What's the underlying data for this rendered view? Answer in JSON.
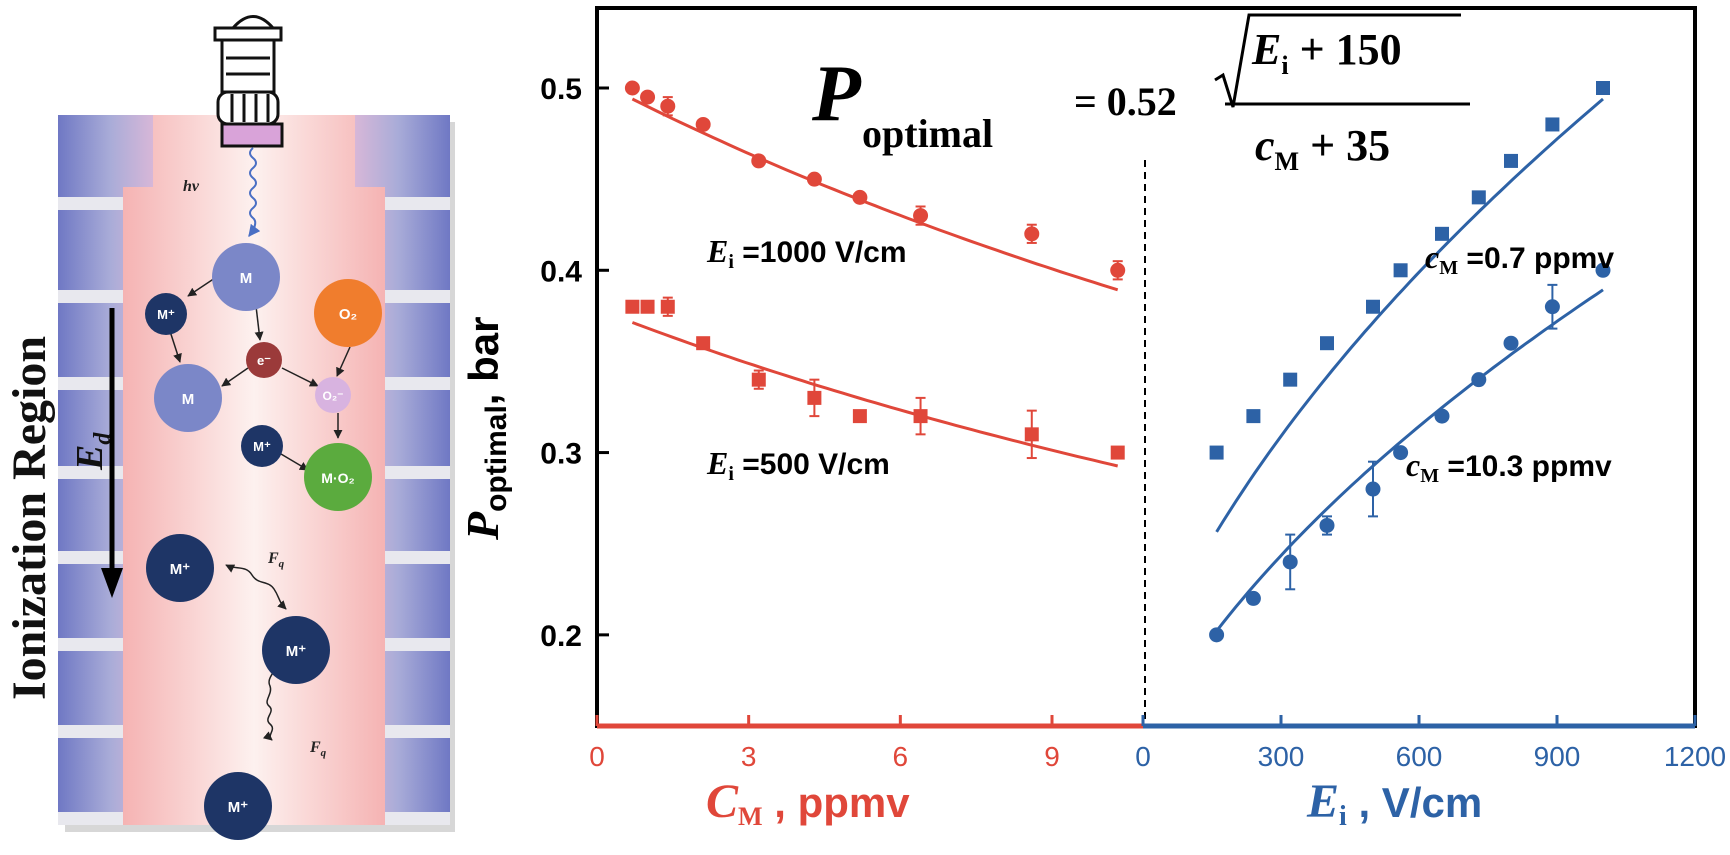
{
  "diagram": {
    "region_label": "Ionization Region",
    "field_label_main": "E",
    "field_label_sub": "d",
    "hv_label": "hv",
    "force_label_main": "F",
    "force_label_sub": "q",
    "species": {
      "m": "M",
      "m_plus": "M⁺",
      "e_minus": "e⁻",
      "o2": "O₂",
      "o2_minus": "O₂⁻",
      "mo2": "M·O₂"
    },
    "colors": {
      "wall": "#8d93d0",
      "channel": "#f7c6c6",
      "m": "#7b87c8",
      "m_plus": "#1e3566",
      "e_minus": "#9b3a3a",
      "o2": "#f07d2d",
      "o2_minus": "#d8b3e0",
      "mo2": "#5bab3e",
      "lamp_window": "#d9a3d9"
    }
  },
  "chart": {
    "y_label_main": "P",
    "y_label_sub": "optimal",
    "y_label_unit": ", bar",
    "left_x_label_main": "C",
    "left_x_label_sub": "M",
    "left_x_label_unit": " , ppmv",
    "right_x_label_main": "E",
    "right_x_label_sub": "i",
    "right_x_label_unit": " , V/cm",
    "formula": {
      "lhs_main": "P",
      "lhs_sub": "optimal",
      "equals": "= 0.52",
      "num_a": "E",
      "num_sub": "i",
      "num_b": " + 150",
      "den_a": "c",
      "den_sub": "M",
      "den_b": " + 35"
    },
    "annotations": {
      "ei1000": {
        "main": "E",
        "sub": "i",
        "rest": " =1000 V/cm"
      },
      "ei500": {
        "main": "E",
        "sub": "i",
        "rest": " =500 V/cm"
      },
      "cm07": {
        "main": "c",
        "sub": "M",
        "rest": " =0.7 ppmv"
      },
      "cm103": {
        "main": "c",
        "sub": "M",
        "rest": " =10.3 ppmv"
      }
    },
    "colors": {
      "left": "#e0473a",
      "right": "#2d62a6",
      "axis": "#000000"
    }
  },
  "chart_data": [
    {
      "type": "scatter",
      "x_axis": "C_M, ppmv",
      "xlim": [
        0,
        10.8
      ],
      "x_ticks": [
        0,
        3,
        6,
        9
      ],
      "ylim": [
        0.15,
        0.55
      ],
      "y_ticks": [
        0.2,
        0.3,
        0.4,
        0.5
      ],
      "series": [
        {
          "name": "E_i =1000 V/cm",
          "marker": "circle",
          "x": [
            0.7,
            1.0,
            1.4,
            2.1,
            3.2,
            4.3,
            5.2,
            6.4,
            8.6,
            10.3
          ],
          "y": [
            0.5,
            0.495,
            0.49,
            0.48,
            0.46,
            0.45,
            0.44,
            0.43,
            0.42,
            0.4
          ],
          "err": [
            0,
            0,
            0.005,
            0,
            0,
            0,
            0,
            0.005,
            0.005,
            0.005
          ]
        },
        {
          "name": "E_i =500 V/cm",
          "marker": "square",
          "x": [
            0.7,
            1.0,
            1.4,
            2.1,
            3.2,
            4.3,
            5.2,
            6.4,
            8.6,
            10.3
          ],
          "y": [
            0.38,
            0.38,
            0.38,
            0.36,
            0.34,
            0.33,
            0.32,
            0.32,
            0.31,
            0.3
          ],
          "err": [
            0,
            0,
            0.005,
            0,
            0.005,
            0.01,
            0,
            0.01,
            0.013,
            0
          ]
        }
      ],
      "fits": [
        {
          "name": "E_i =1000 V/cm",
          "E_i": 1000,
          "x_range": [
            0.7,
            10.3
          ]
        },
        {
          "name": "E_i =500 V/cm",
          "E_i": 500,
          "x_range": [
            0.7,
            10.3
          ]
        }
      ]
    },
    {
      "type": "scatter",
      "x_axis": "E_i, V/cm",
      "xlim": [
        0,
        1200
      ],
      "x_ticks": [
        0,
        300,
        600,
        900,
        1200
      ],
      "ylim": [
        0.15,
        0.55
      ],
      "y_ticks": [
        0.2,
        0.3,
        0.4,
        0.5
      ],
      "series": [
        {
          "name": "c_M =0.7 ppmv",
          "marker": "square",
          "x": [
            160,
            240,
            320,
            400,
            500,
            560,
            650,
            730,
            800,
            890,
            1000
          ],
          "y": [
            0.3,
            0.32,
            0.34,
            0.36,
            0.38,
            0.4,
            0.42,
            0.44,
            0.46,
            0.48,
            0.5
          ],
          "err": [
            0,
            0,
            0,
            0,
            0,
            0,
            0,
            0,
            0,
            0,
            0
          ]
        },
        {
          "name": "c_M =10.3 ppmv",
          "marker": "circle",
          "x": [
            160,
            240,
            320,
            400,
            500,
            560,
            650,
            730,
            800,
            890,
            1000
          ],
          "y": [
            0.2,
            0.22,
            0.24,
            0.26,
            0.28,
            0.3,
            0.32,
            0.34,
            0.36,
            0.38,
            0.4
          ],
          "err": [
            0,
            0,
            0.015,
            0.005,
            0.015,
            0,
            0,
            0,
            0,
            0.012,
            0
          ]
        }
      ],
      "fits": [
        {
          "name": "c_M =0.7 ppmv",
          "c_M": 0.7,
          "x_range": [
            160,
            1000
          ]
        },
        {
          "name": "c_M =10.3 ppmv",
          "c_M": 10.3,
          "x_range": [
            160,
            1000
          ]
        }
      ]
    }
  ]
}
